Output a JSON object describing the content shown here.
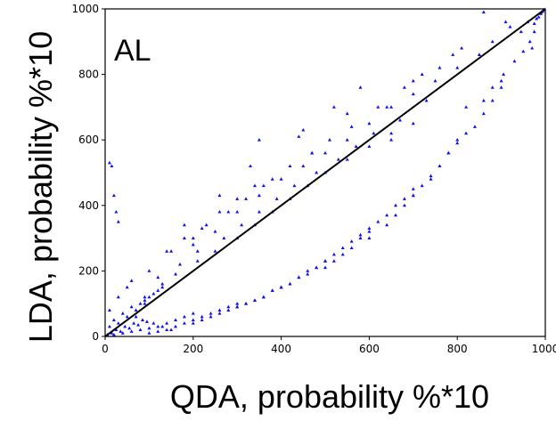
{
  "chart_data": {
    "type": "scatter",
    "title": "",
    "subtitle": "",
    "panel_label": "AL",
    "xlabel": "QDA, probability %*10",
    "ylabel": "LDA, probability %*10",
    "xlim": [
      0,
      1000
    ],
    "ylim": [
      0,
      1000
    ],
    "x_ticks": [
      "0",
      "200",
      "400",
      "600",
      "800",
      "1000"
    ],
    "y_ticks": [
      "0",
      "200",
      "400",
      "600",
      "800",
      "1000"
    ],
    "grid": false,
    "marker": "triangle",
    "colors": {
      "points": "#1010ee",
      "diagonal": "#000000",
      "axes": "#000000"
    },
    "reference_line": {
      "from": [
        0,
        0
      ],
      "to": [
        1000,
        1000
      ]
    },
    "series": [
      {
        "x": [
          860,
          910,
          920,
          945,
          960,
          975,
          980,
          985,
          990,
          992,
          995,
          998,
          820,
          860,
          880,
          900,
          905,
          930,
          950,
          965,
          970,
          975,
          700,
          740,
          760,
          780,
          800,
          820,
          840,
          860,
          880,
          900,
          600,
          640,
          660,
          680,
          700,
          720,
          740,
          760,
          780,
          800,
          500,
          520,
          540,
          560,
          580,
          600,
          620,
          640,
          660,
          680,
          700,
          400,
          420,
          440,
          460,
          480,
          500,
          520,
          540,
          560,
          580,
          600,
          300,
          320,
          340,
          360,
          380,
          400,
          420,
          440,
          460,
          480,
          500,
          200,
          220,
          240,
          260,
          280,
          300,
          320,
          340,
          360,
          380,
          400,
          100,
          120,
          140,
          160,
          180,
          200,
          220,
          240,
          260,
          280,
          300,
          20,
          40,
          60,
          80,
          100,
          120,
          140,
          160,
          180,
          200,
          10,
          20,
          30,
          40,
          50,
          60,
          70,
          80,
          90,
          100,
          110,
          120,
          130,
          5,
          15,
          25,
          35,
          45,
          55,
          65,
          75,
          85,
          95,
          10,
          30,
          50,
          70,
          90,
          110,
          130,
          150,
          200,
          250,
          300,
          350,
          400,
          450,
          500,
          550,
          600,
          650,
          700,
          750,
          800,
          850,
          180,
          260,
          330,
          440,
          470,
          520,
          580,
          640,
          700,
          760,
          810,
          880,
          150,
          200,
          230,
          280,
          320,
          360,
          420,
          470,
          510,
          560,
          620,
          680,
          720,
          790,
          120,
          170,
          210,
          270,
          310,
          350,
          390,
          430,
          480,
          530,
          570,
          610,
          670,
          730,
          90,
          130,
          160,
          210,
          250,
          300,
          340,
          380,
          420,
          460,
          500,
          550,
          600,
          650,
          60,
          100,
          140,
          180,
          220,
          260,
          300,
          340,
          380,
          10,
          15,
          20,
          25,
          30,
          350,
          450,
          550,
          650,
          700,
          850
        ],
        "y": [
          990,
          960,
          945,
          930,
          960,
          955,
          970,
          975,
          985,
          990,
          994,
          998,
          700,
          720,
          760,
          780,
          800,
          840,
          870,
          900,
          880,
          930,
          430,
          480,
          520,
          560,
          590,
          620,
          640,
          680,
          720,
          760,
          300,
          340,
          370,
          400,
          430,
          460,
          490,
          520,
          560,
          600,
          210,
          230,
          250,
          270,
          300,
          320,
          350,
          370,
          400,
          420,
          450,
          150,
          160,
          180,
          200,
          210,
          230,
          250,
          270,
          290,
          310,
          330,
          90,
          100,
          110,
          120,
          140,
          150,
          160,
          180,
          190,
          210,
          230,
          40,
          50,
          60,
          70,
          80,
          90,
          100,
          110,
          120,
          140,
          150,
          10,
          15,
          20,
          30,
          40,
          50,
          60,
          70,
          80,
          90,
          100,
          5,
          10,
          15,
          20,
          25,
          30,
          40,
          50,
          60,
          70,
          30,
          50,
          40,
          70,
          60,
          90,
          80,
          100,
          110,
          120,
          130,
          140,
          150,
          5,
          10,
          20,
          15,
          30,
          25,
          40,
          35,
          50,
          45,
          80,
          120,
          150,
          60,
          100,
          40,
          30,
          20,
          280,
          320,
          380,
          430,
          480,
          520,
          560,
          600,
          650,
          700,
          740,
          780,
          820,
          860,
          340,
          430,
          520,
          610,
          560,
          700,
          760,
          700,
          780,
          820,
          880,
          900,
          260,
          300,
          340,
          380,
          420,
          460,
          520,
          560,
          600,
          640,
          700,
          760,
          800,
          860,
          180,
          220,
          260,
          300,
          340,
          380,
          420,
          460,
          500,
          540,
          580,
          620,
          660,
          720,
          120,
          160,
          190,
          230,
          260,
          300,
          340,
          380,
          420,
          460,
          500,
          540,
          580,
          620,
          170,
          200,
          260,
          300,
          330,
          380,
          420,
          460,
          480,
          530,
          520,
          430,
          380,
          350,
          600,
          630,
          680,
          600,
          650,
          860
        ]
      }
    ],
    "diagonal_line": "y = x"
  }
}
